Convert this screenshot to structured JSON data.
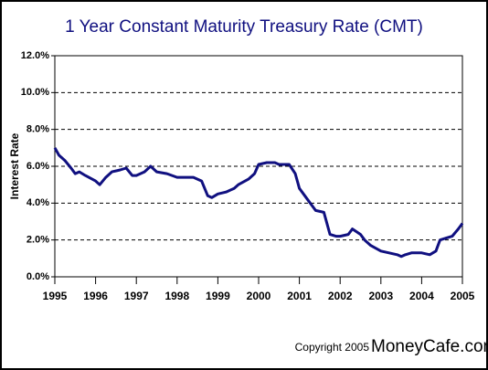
{
  "chart_data": {
    "type": "line",
    "title": "1 Year Constant Maturity Treasury Rate (CMT)",
    "y_label": "Interest Rate",
    "copyright": "Copyright  2005",
    "brand": "MoneyCafe.com",
    "color": "#101080",
    "grid": true,
    "xlim": [
      1995,
      2005
    ],
    "xticks": [
      1995,
      1996,
      1997,
      1998,
      1999,
      2000,
      2001,
      2002,
      2003,
      2004,
      2005
    ],
    "ylim": [
      0,
      12
    ],
    "yticks": [
      {
        "value": 0,
        "label": "0.0%"
      },
      {
        "value": 2,
        "label": "2.0%"
      },
      {
        "value": 4,
        "label": "4.0%"
      },
      {
        "value": 6,
        "label": "6.0%"
      },
      {
        "value": 8,
        "label": "8.0%"
      },
      {
        "value": 10,
        "label": "10.0%"
      },
      {
        "value": 12,
        "label": "12.0%"
      }
    ],
    "x": [
      1995.0,
      1995.1,
      1995.25,
      1995.4,
      1995.5,
      1995.6,
      1995.75,
      1996.0,
      1996.1,
      1996.25,
      1996.4,
      1996.6,
      1996.75,
      1996.9,
      1997.0,
      1997.2,
      1997.35,
      1997.5,
      1997.75,
      1998.0,
      1998.2,
      1998.4,
      1998.6,
      1998.75,
      1998.85,
      1999.0,
      1999.2,
      1999.4,
      1999.5,
      1999.75,
      1999.9,
      2000.0,
      2000.2,
      2000.4,
      2000.5,
      2000.75,
      2000.9,
      2001.0,
      2001.2,
      2001.4,
      2001.6,
      2001.75,
      2001.9,
      2002.0,
      2002.2,
      2002.3,
      2002.5,
      2002.6,
      2002.75,
      2003.0,
      2003.2,
      2003.4,
      2003.5,
      2003.6,
      2003.75,
      2004.0,
      2004.2,
      2004.35,
      2004.45,
      2004.6,
      2004.75,
      2004.9,
      2005.0
    ],
    "values": [
      7.0,
      6.6,
      6.3,
      5.9,
      5.6,
      5.7,
      5.5,
      5.2,
      5.0,
      5.4,
      5.7,
      5.8,
      5.9,
      5.5,
      5.5,
      5.7,
      6.0,
      5.7,
      5.6,
      5.4,
      5.4,
      5.4,
      5.2,
      4.4,
      4.3,
      4.5,
      4.6,
      4.8,
      5.0,
      5.3,
      5.6,
      6.1,
      6.2,
      6.2,
      6.1,
      6.1,
      5.6,
      4.8,
      4.2,
      3.6,
      3.5,
      2.3,
      2.2,
      2.2,
      2.3,
      2.6,
      2.3,
      2.0,
      1.7,
      1.4,
      1.3,
      1.2,
      1.1,
      1.2,
      1.3,
      1.3,
      1.2,
      1.4,
      2.0,
      2.1,
      2.2,
      2.6,
      2.9
    ]
  }
}
